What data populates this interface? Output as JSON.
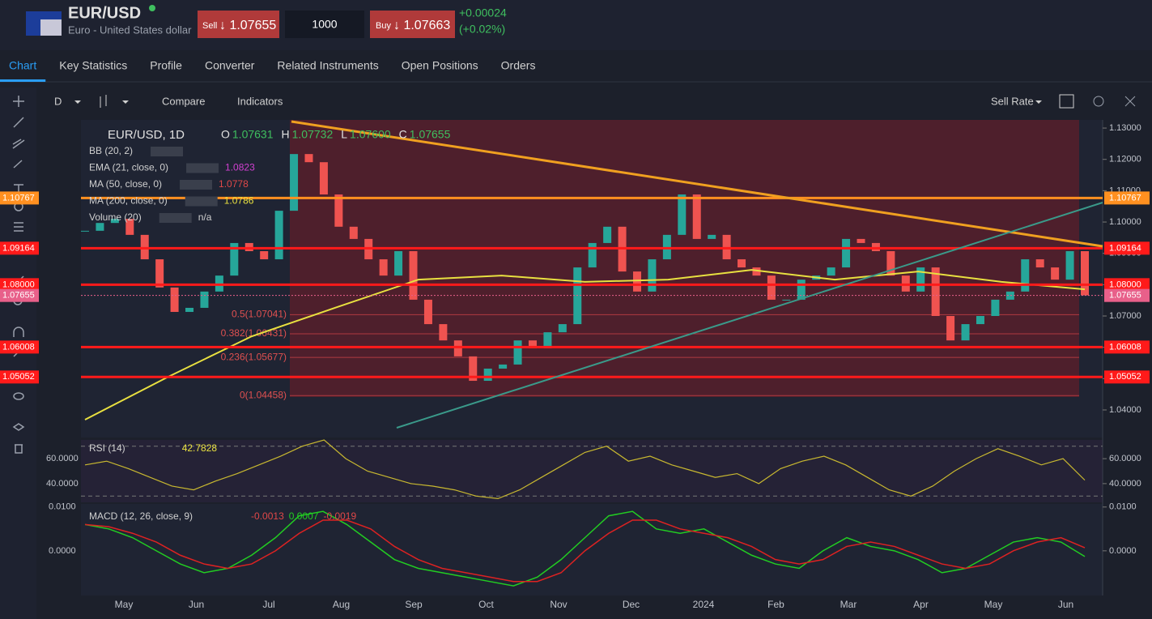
{
  "header": {
    "title": "EUR/USD",
    "subtitle": "Euro - United States dollar",
    "sell_label": "Sell",
    "sell_price": "↓ 1.07655",
    "quantity": "1000",
    "buy_label": "Buy",
    "buy_price": "↓ 1.07663",
    "change": "+0.00024",
    "change_pct": "(+0.02%)"
  },
  "tabs": [
    "Chart",
    "Key Statistics",
    "Profile",
    "Converter",
    "Related Instruments",
    "Open Positions",
    "Orders"
  ],
  "toolbar": {
    "interval": "D",
    "compare": "Compare",
    "indicators": "Indicators",
    "rate": "Sell Rate"
  },
  "main": {
    "type": "candlestick",
    "symbol": "EUR/USD, 1D",
    "ohlc": [
      {
        "key": "O",
        "value": "1.07631"
      },
      {
        "key": "H",
        "value": "1.07732"
      },
      {
        "key": "L",
        "value": "1.07600"
      },
      {
        "key": "C",
        "value": "1.07655"
      }
    ],
    "indicators": [
      {
        "name": "BB (20, 2)",
        "value": null,
        "color": "#d0d0d0"
      },
      {
        "name": "EMA (21, close, 0)",
        "value": "1.0823",
        "color": "#d040d0"
      },
      {
        "name": "MA (50, close, 0)",
        "value": "1.0778",
        "color": "#e04848"
      },
      {
        "name": "MA (200, close, 0)",
        "value": "1.0786",
        "color": "#e8e040"
      },
      {
        "name": "Volume (20)",
        "value": "n/a",
        "color": "#d0d0d0"
      }
    ],
    "closes": [
      1.0972,
      1.0997,
      1.101,
      1.0959,
      1.0881,
      1.0791,
      1.0713,
      1.0726,
      1.0778,
      1.0829,
      1.0933,
      1.0907,
      1.0881,
      1.1036,
      1.1217,
      1.1191,
      1.1088,
      1.0985,
      1.0946,
      1.0881,
      1.0829,
      1.0907,
      1.0752,
      1.0674,
      1.0622,
      1.0571,
      1.0493,
      1.0532,
      1.0545,
      1.0622,
      1.0597,
      1.0648,
      1.0674,
      1.0855,
      1.0933,
      1.0985,
      1.0842,
      1.0778,
      1.0881,
      1.0959,
      1.1088,
      1.0946,
      1.0959,
      1.0881,
      1.0855,
      1.0829,
      1.0752,
      1.0752,
      1.0816,
      1.0829,
      1.0855,
      1.0946,
      1.0933,
      1.0907,
      1.0829,
      1.0778,
      1.0855,
      1.07,
      1.0622,
      1.0674,
      1.07,
      1.0752,
      1.0778,
      1.0881,
      1.0855,
      1.0816,
      1.0907,
      1.0766
    ],
    "up_color": "#26a69a",
    "down_color": "#ef5350",
    "ma200": [
      1.0369,
      1.0506,
      1.0635,
      1.0726,
      1.0816,
      1.0829,
      1.0809,
      1.0816,
      1.0847,
      1.0816,
      1.0842,
      1.0809,
      1.0785
    ],
    "ylim": [
      1.0312,
      1.1326
    ],
    "yticks": [
      {
        "value": 1.04,
        "label": "1.04000"
      },
      {
        "value": 1.05,
        "label": "1.05000"
      },
      {
        "value": 1.06,
        "label": "1.06000"
      },
      {
        "value": 1.07,
        "label": "1.07000"
      },
      {
        "value": 1.08,
        "label": "1.08000"
      },
      {
        "value": 1.09,
        "label": "1.09000"
      },
      {
        "value": 1.1,
        "label": "1.10000"
      },
      {
        "value": 1.11,
        "label": "1.11000"
      },
      {
        "value": 1.12,
        "label": "1.12000"
      },
      {
        "value": 1.13,
        "label": "1.13000"
      }
    ],
    "levels": [
      {
        "value": 1.10767,
        "label": "1.10767",
        "color": "#ff9020"
      },
      {
        "value": 1.09164,
        "label": "1.09164",
        "color": "#ff1a1a"
      },
      {
        "value": 1.08,
        "label": "1.08000",
        "color": "#ff1a1a"
      },
      {
        "value": 1.06008,
        "label": "1.06008",
        "color": "#ff1a1a"
      },
      {
        "value": 1.05052,
        "label": "1.05052",
        "color": "#ff1a1a"
      }
    ],
    "current": {
      "value": 1.07655,
      "label": "1.07655",
      "color": "#e8608a"
    },
    "fib": [
      {
        "value": 1.07041,
        "label": "0.5(1.07041)"
      },
      {
        "value": 1.06431,
        "label": "0.382(1.06431)"
      },
      {
        "value": 1.05677,
        "label": "0.236(1.05677)"
      },
      {
        "value": 1.04458,
        "label": "0(1.04458)"
      }
    ],
    "x_labels": [
      "May",
      "Jun",
      "Jul",
      "Aug",
      "Sep",
      "Oct",
      "Nov",
      "Dec",
      "2024",
      "Feb",
      "Mar",
      "Apr",
      "May",
      "Jun"
    ]
  },
  "rsi": {
    "type": "line",
    "name": "RSI (14)",
    "value": "42.7828",
    "color": "#c8b830",
    "values": [
      55,
      58,
      52,
      45,
      38,
      35,
      42,
      48,
      55,
      62,
      70,
      75,
      60,
      50,
      45,
      40,
      38,
      35,
      30,
      28,
      35,
      45,
      55,
      65,
      70,
      58,
      62,
      55,
      50,
      45,
      48,
      40,
      52,
      58,
      62,
      55,
      45,
      35,
      30,
      38,
      50,
      60,
      68,
      62,
      55,
      60,
      42.78
    ],
    "ylim": [
      25,
      75
    ],
    "yticks": [
      {
        "value": 40,
        "label": "40.0000"
      },
      {
        "value": 60,
        "label": "60.0000"
      }
    ],
    "levels": [
      30,
      70
    ]
  },
  "macd": {
    "type": "line",
    "name": "MACD (12, 26, close, 9)",
    "values_text": [
      "-0.0013",
      "0.0007",
      "-0.0019"
    ],
    "series": [
      {
        "name": "MACD",
        "color": "#22cc22",
        "values": [
          0.006,
          0.005,
          0.003,
          0.0,
          -0.003,
          -0.005,
          -0.004,
          -0.001,
          0.003,
          0.008,
          0.009,
          0.006,
          0.002,
          -0.002,
          -0.004,
          -0.005,
          -0.006,
          -0.007,
          -0.008,
          -0.006,
          -0.002,
          0.003,
          0.008,
          0.009,
          0.005,
          0.004,
          0.005,
          0.002,
          -0.001,
          -0.003,
          -0.004,
          0.0,
          0.003,
          0.001,
          0.0,
          -0.002,
          -0.005,
          -0.004,
          -0.001,
          0.002,
          0.003,
          0.002,
          -0.0013
        ]
      },
      {
        "name": "Signal",
        "color": "#dd2222",
        "values": [
          0.006,
          0.0055,
          0.004,
          0.002,
          -0.001,
          -0.003,
          -0.004,
          -0.003,
          0.0,
          0.004,
          0.007,
          0.007,
          0.005,
          0.001,
          -0.002,
          -0.004,
          -0.005,
          -0.006,
          -0.007,
          -0.007,
          -0.005,
          0.0,
          0.004,
          0.007,
          0.007,
          0.005,
          0.004,
          0.003,
          0.001,
          -0.002,
          -0.003,
          -0.002,
          0.001,
          0.002,
          0.001,
          -0.001,
          -0.003,
          -0.004,
          -0.003,
          0.0,
          0.002,
          0.003,
          0.0007
        ]
      }
    ],
    "ylim": [
      -0.0102,
      0.0107
    ],
    "yticks": [
      {
        "value": 0,
        "label": "0.0000"
      },
      {
        "value": 0.01,
        "label": "0.0100"
      }
    ]
  }
}
